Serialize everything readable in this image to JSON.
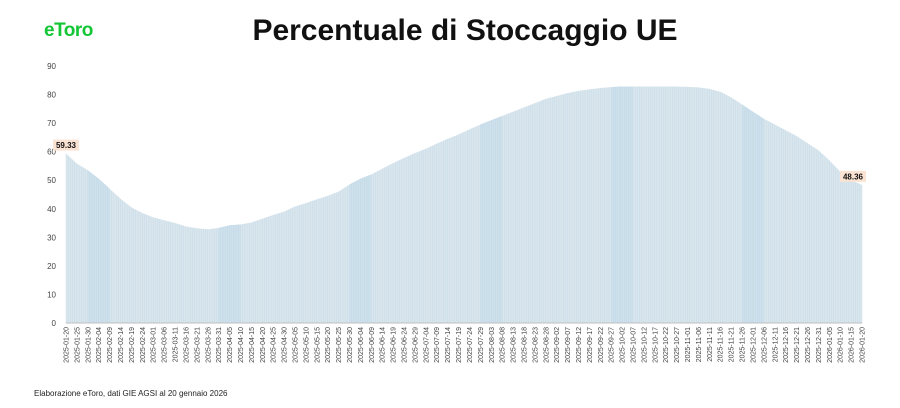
{
  "logo": {
    "text": "eToro"
  },
  "footer": "Elaborazione eToro, dati GIE AGSI al 20 gennaio 2026",
  "colors": {
    "fill": "#d3e2ea",
    "highlight": "#a9d4ee",
    "label_bg": "#fbe3d4",
    "brand": "#13c636"
  },
  "chart_data": {
    "type": "area",
    "title": "Percentuale di Stoccaggio UE",
    "xlabel": "",
    "ylabel": "",
    "ylim": [
      0,
      90
    ],
    "yticks": [
      0,
      10,
      20,
      30,
      40,
      50,
      60,
      70,
      80,
      90
    ],
    "grid": false,
    "legend": "none",
    "x_ticks": [
      "2025-01-20",
      "2025-01-25",
      "2025-01-30",
      "2025-02-04",
      "2025-02-09",
      "2025-02-14",
      "2025-02-19",
      "2025-02-24",
      "2025-03-01",
      "2025-03-06",
      "2025-03-11",
      "2025-03-16",
      "2025-03-21",
      "2025-03-26",
      "2025-03-31",
      "2025-04-05",
      "2025-04-10",
      "2025-04-15",
      "2025-04-20",
      "2025-04-25",
      "2025-04-30",
      "2025-05-05",
      "2025-05-10",
      "2025-05-15",
      "2025-05-20",
      "2025-05-25",
      "2025-05-30",
      "2025-06-04",
      "2025-06-09",
      "2025-06-14",
      "2025-06-19",
      "2025-06-24",
      "2025-06-29",
      "2025-07-04",
      "2025-07-09",
      "2025-07-14",
      "2025-07-19",
      "2025-07-24",
      "2025-07-29",
      "2025-08-03",
      "2025-08-08",
      "2025-08-13",
      "2025-08-18",
      "2025-08-23",
      "2025-08-28",
      "2025-09-02",
      "2025-09-07",
      "2025-09-12",
      "2025-09-17",
      "2025-09-22",
      "2025-09-27",
      "2025-10-02",
      "2025-10-07",
      "2025-10-12",
      "2025-10-17",
      "2025-10-22",
      "2025-10-27",
      "2025-11-01",
      "2025-11-06",
      "2025-11-11",
      "2025-11-16",
      "2025-11-21",
      "2025-11-26",
      "2025-12-01",
      "2025-12-06",
      "2025-12-11",
      "2025-12-16",
      "2025-12-21",
      "2025-12-26",
      "2025-12-31",
      "2026-01-05",
      "2026-01-10",
      "2026-01-15",
      "2026-01-20"
    ],
    "values": [
      59.33,
      55.8,
      53.5,
      50.5,
      47.0,
      43.5,
      40.5,
      38.5,
      37.0,
      36.0,
      35.0,
      33.8,
      33.2,
      32.8,
      33.3,
      34.2,
      34.5,
      35.2,
      36.5,
      37.8,
      39.0,
      40.8,
      42.0,
      43.3,
      44.5,
      46.0,
      48.5,
      50.5,
      52.0,
      54.0,
      56.0,
      57.8,
      59.5,
      61.0,
      62.8,
      64.5,
      66.0,
      67.8,
      69.5,
      71.0,
      72.5,
      74.0,
      75.5,
      77.0,
      78.5,
      79.5,
      80.5,
      81.3,
      81.8,
      82.3,
      82.6,
      82.8,
      82.8,
      82.8,
      82.8,
      82.8,
      82.8,
      82.7,
      82.5,
      82.0,
      81.0,
      79.0,
      76.5,
      74.0,
      71.5,
      69.5,
      67.5,
      65.5,
      63.0,
      60.5,
      57.0,
      53.0,
      50.0,
      48.36
    ],
    "annotations": [
      {
        "text": "59.33",
        "x": "2025-01-20",
        "y": 59.33
      },
      {
        "text": "48.36",
        "x": "2026-01-20",
        "y": 48.36
      }
    ],
    "highlight_ranges": [
      [
        "2025-01-30",
        "2025-02-09"
      ],
      [
        "2025-03-31",
        "2025-04-10"
      ],
      [
        "2025-05-30",
        "2025-06-09"
      ],
      [
        "2025-07-29",
        "2025-08-08"
      ],
      [
        "2025-09-27",
        "2025-10-07"
      ],
      [
        "2025-11-26",
        "2025-12-06"
      ]
    ]
  }
}
